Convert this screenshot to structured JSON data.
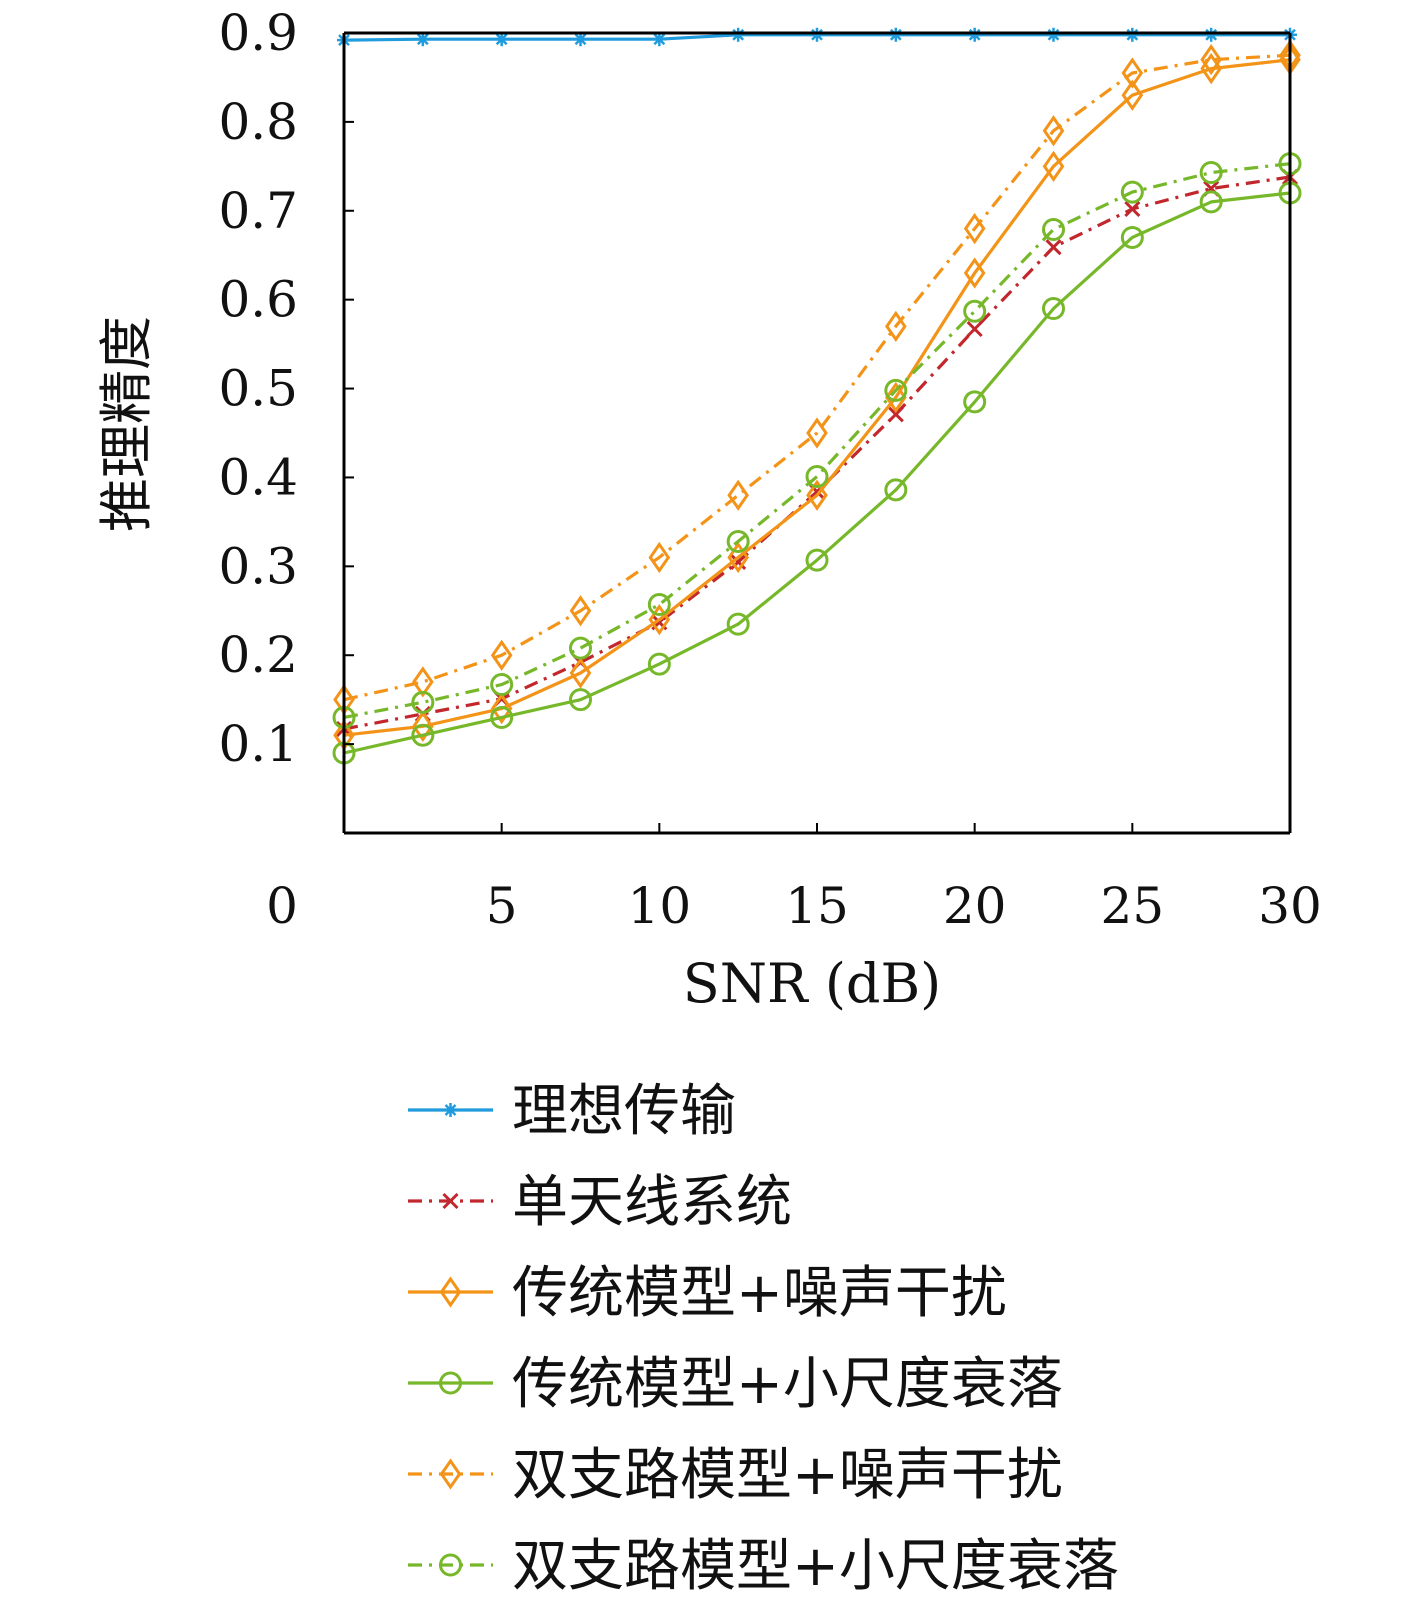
{
  "chart_data": {
    "type": "line",
    "title": "",
    "xlabel": "SNR (dB)",
    "ylabel": "推理精度",
    "xlim": [
      0,
      30
    ],
    "ylim": [
      0,
      0.9
    ],
    "x_ticks": [
      "0",
      "5",
      "10",
      "15",
      "20",
      "25",
      "30"
    ],
    "y_ticks": [
      "0.1",
      "0.2",
      "0.3",
      "0.4",
      "0.5",
      "0.6",
      "0.7",
      "0.8",
      "0.9"
    ],
    "x": [
      0,
      2.5,
      5,
      7.5,
      10,
      12.5,
      15,
      17.5,
      20,
      22.5,
      25,
      27.5,
      30
    ],
    "legend_position": "bottom",
    "series": [
      {
        "name": "理想传输",
        "values": [
          0.892,
          0.893,
          0.893,
          0.893,
          0.893,
          0.898,
          0.898,
          0.898,
          0.898,
          0.898,
          0.898,
          0.898,
          0.898
        ],
        "color": "#1f9bde",
        "line_style": "solid",
        "marker": "asterisk"
      },
      {
        "name": "单天线系统",
        "values": [
          0.117,
          0.134,
          0.151,
          0.192,
          0.237,
          0.305,
          0.384,
          0.471,
          0.567,
          0.659,
          0.702,
          0.725,
          0.738
        ],
        "color": "#c1272d",
        "line_style": "dashdot",
        "marker": "x"
      },
      {
        "name": "传统模型+噪声干扰",
        "values": [
          0.11,
          0.12,
          0.14,
          0.18,
          0.24,
          0.31,
          0.38,
          0.49,
          0.63,
          0.75,
          0.83,
          0.86,
          0.87
        ],
        "color": "#f39419",
        "line_style": "solid",
        "marker": "diamond"
      },
      {
        "name": "传统模型+小尺度衰落",
        "values": [
          0.09,
          0.11,
          0.13,
          0.15,
          0.19,
          0.235,
          0.307,
          0.386,
          0.485,
          0.59,
          0.67,
          0.71,
          0.72
        ],
        "color": "#77b82a",
        "line_style": "solid",
        "marker": "circle"
      },
      {
        "name": "双支路模型+噪声干扰",
        "values": [
          0.15,
          0.17,
          0.2,
          0.25,
          0.31,
          0.38,
          0.45,
          0.57,
          0.68,
          0.79,
          0.855,
          0.87,
          0.875
        ],
        "color": "#f39419",
        "line_style": "dashdot",
        "marker": "diamond"
      },
      {
        "name": "双支路模型+小尺度衰落",
        "values": [
          0.13,
          0.147,
          0.167,
          0.208,
          0.257,
          0.328,
          0.401,
          0.498,
          0.587,
          0.679,
          0.721,
          0.743,
          0.753
        ],
        "color": "#77b82a",
        "line_style": "dashdot",
        "marker": "circle"
      }
    ]
  }
}
